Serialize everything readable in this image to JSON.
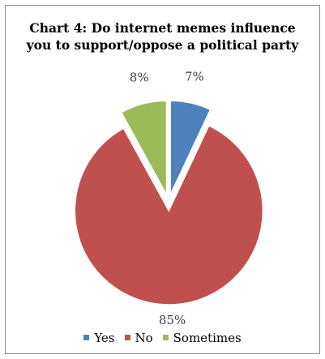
{
  "chart_data": {
    "type": "pie",
    "title_lines": [
      "Chart 4: Do internet memes influence",
      "you to support/oppose a political party"
    ],
    "categories": [
      "Yes",
      "No",
      "Sometimes"
    ],
    "values": [
      7,
      85,
      8
    ],
    "labels": [
      "7%",
      "85%",
      "8%"
    ],
    "colors": [
      "#4f81bd",
      "#c0504d",
      "#9bbb59"
    ],
    "exploded": true,
    "legend_position": "bottom"
  }
}
